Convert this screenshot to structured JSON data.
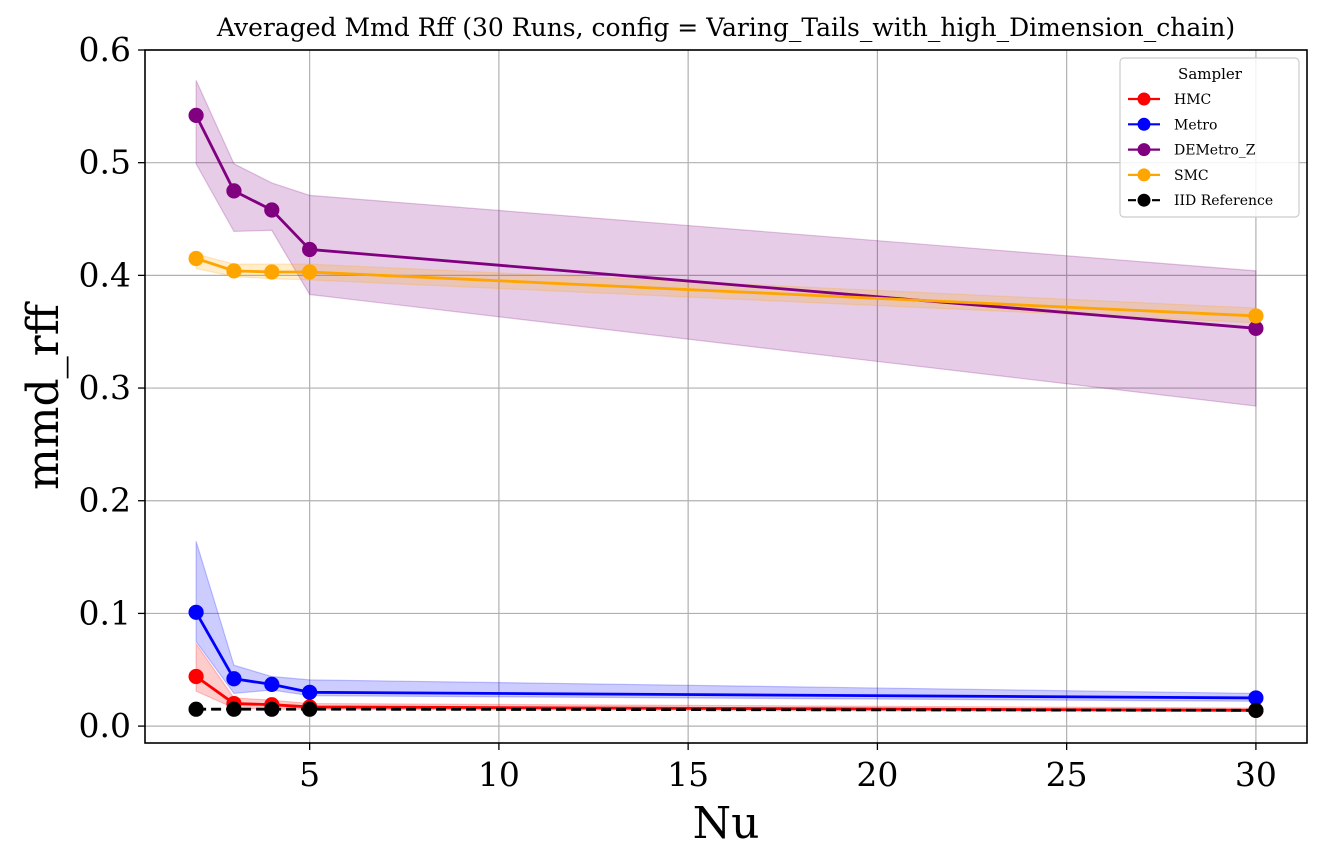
{
  "chart_data": {
    "type": "line",
    "title": "Averaged Mmd Rff (30 Runs, config = Varing_Tails_with_high_Dimension_chain)",
    "xlabel": "Nu",
    "ylabel": "mmd_rff",
    "xlim": [
      0.65,
      31.35
    ],
    "ylim": [
      -0.015,
      0.6
    ],
    "xticks": [
      5,
      10,
      15,
      20,
      25,
      30
    ],
    "yticks": [
      0.0,
      0.1,
      0.2,
      0.3,
      0.4,
      0.5,
      0.6
    ],
    "xtick_labels": [
      "5",
      "10",
      "15",
      "20",
      "25",
      "30"
    ],
    "ytick_labels": [
      "0.0",
      "0.1",
      "0.2",
      "0.3",
      "0.4",
      "0.5",
      "0.6"
    ],
    "grid": true,
    "legend": {
      "title": "Sampler",
      "position": "top-right"
    },
    "x": [
      2,
      3,
      4,
      5,
      30
    ],
    "series": [
      {
        "name": "HMC",
        "color": "#ff0000",
        "dash": false,
        "values": [
          0.044,
          0.02,
          0.019,
          0.017,
          0.014
        ],
        "lower": [
          0.031,
          0.016,
          0.015,
          0.015,
          0.013
        ],
        "upper": [
          0.073,
          0.025,
          0.023,
          0.02,
          0.016
        ]
      },
      {
        "name": "Metro",
        "color": "#0000ff",
        "dash": false,
        "values": [
          0.101,
          0.042,
          0.037,
          0.03,
          0.025
        ],
        "lower": [
          0.075,
          0.029,
          0.032,
          0.027,
          0.022
        ],
        "upper": [
          0.164,
          0.054,
          0.044,
          0.041,
          0.029
        ]
      },
      {
        "name": "DEMetro_Z",
        "color": "#800080",
        "dash": false,
        "values": [
          0.542,
          0.475,
          0.458,
          0.423,
          0.353
        ],
        "lower": [
          0.499,
          0.439,
          0.44,
          0.383,
          0.284
        ],
        "upper": [
          0.573,
          0.499,
          0.482,
          0.471,
          0.404
        ]
      },
      {
        "name": "SMC",
        "color": "#ffa500",
        "dash": false,
        "values": [
          0.415,
          0.404,
          0.403,
          0.403,
          0.364
        ],
        "lower": [
          0.406,
          0.399,
          0.397,
          0.396,
          0.358
        ],
        "upper": [
          0.419,
          0.41,
          0.41,
          0.41,
          0.371
        ]
      },
      {
        "name": "IID Reference",
        "color": "#000000",
        "dash": true,
        "values": [
          0.015,
          0.015,
          0.015,
          0.015,
          0.014
        ],
        "lower": null,
        "upper": null
      }
    ]
  }
}
